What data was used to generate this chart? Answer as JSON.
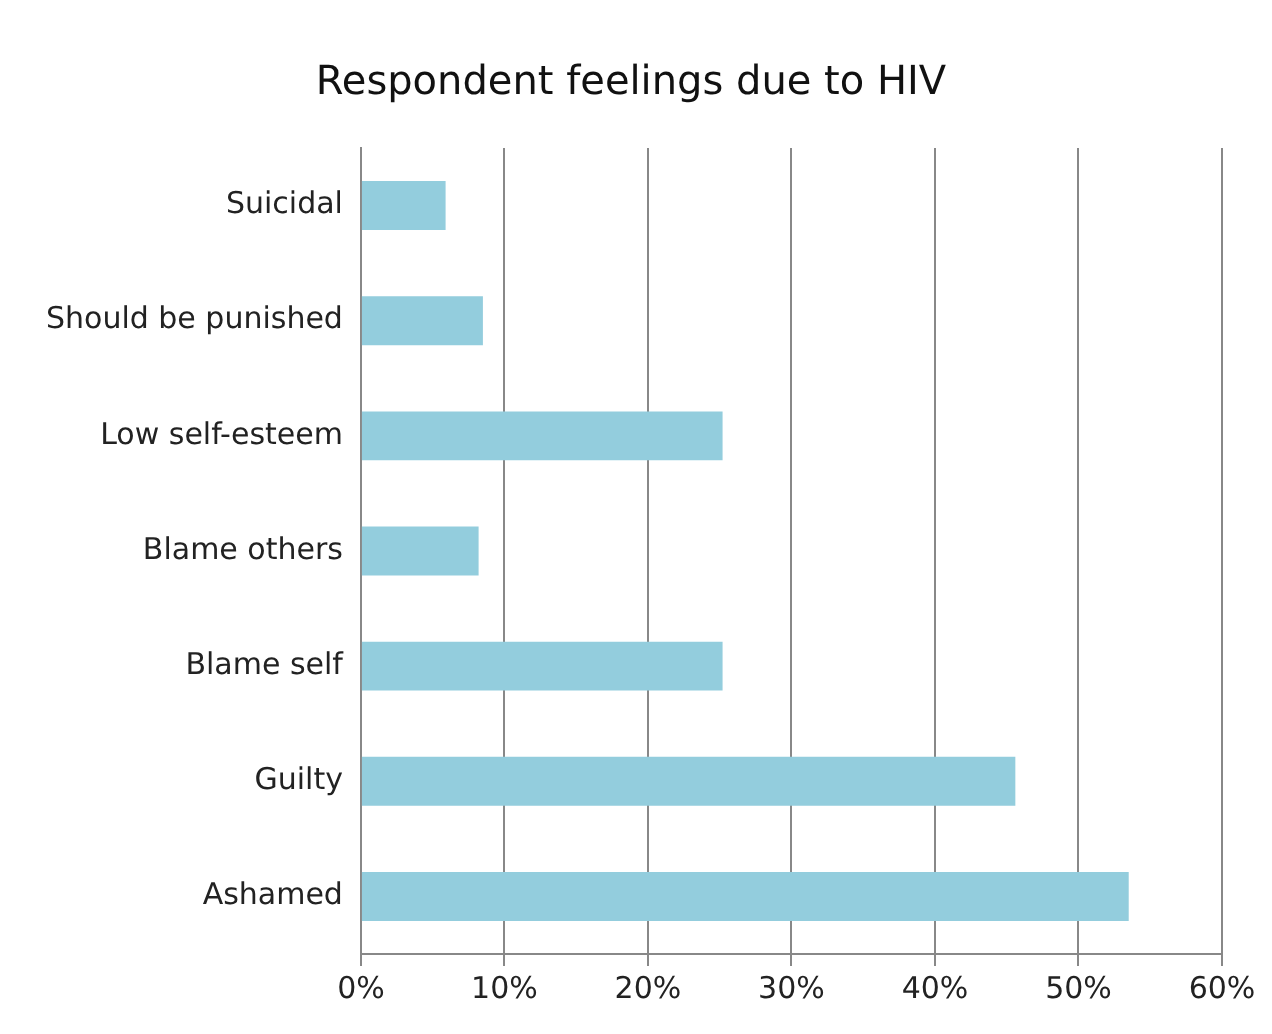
{
  "chart_data": {
    "type": "bar",
    "orientation": "horizontal",
    "title": "Respondent feelings due to HIV",
    "categories": [
      "Suicidal",
      "Should be punished",
      "Low self-esteem",
      "Blame others",
      "Blame self",
      "Guilty",
      "Ashamed"
    ],
    "values": [
      5.9,
      8.5,
      25.2,
      8.2,
      25.2,
      45.6,
      53.5
    ],
    "color": "#93cddd",
    "xlim": [
      0,
      60
    ],
    "xticks": [
      {
        "value": 0,
        "label": "0%"
      },
      {
        "value": 10,
        "label": "10%"
      },
      {
        "value": 20,
        "label": "20%"
      },
      {
        "value": 30,
        "label": "30%"
      },
      {
        "value": 40,
        "label": "40%"
      },
      {
        "value": 50,
        "label": "50%"
      },
      {
        "value": 60,
        "label": "60%"
      }
    ],
    "grid": "x",
    "legend": false
  }
}
